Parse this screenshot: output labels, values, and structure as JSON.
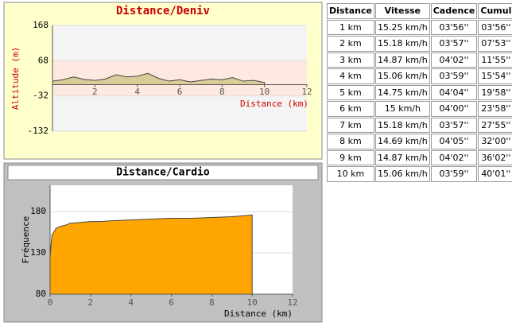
{
  "chart_data": [
    {
      "type": "area",
      "title": "Distance/Deniv",
      "ylabel": "Altitude (m)",
      "xlabel": "Distance (km)",
      "x": [
        0,
        0.5,
        1,
        1.5,
        2,
        2.5,
        3,
        3.5,
        4,
        4.5,
        5,
        5.5,
        6,
        6.5,
        7,
        7.5,
        8,
        8.5,
        9,
        9.5,
        10
      ],
      "values": [
        10,
        14,
        22,
        15,
        12,
        16,
        28,
        22,
        24,
        32,
        18,
        10,
        14,
        8,
        12,
        16,
        14,
        20,
        10,
        12,
        6
      ],
      "color": "#d8cc98",
      "xlim": [
        0,
        12
      ],
      "xticks": [
        2,
        4,
        6,
        8,
        10,
        12
      ],
      "ylim": [
        -132,
        168
      ],
      "yticks": [
        168,
        68,
        -32,
        -132
      ]
    },
    {
      "type": "area",
      "title": "Distance/Cardio",
      "ylabel": "Fréquence",
      "xlabel": "Distance (km)",
      "x": [
        0,
        0.05,
        0.1,
        0.2,
        0.3,
        0.5,
        0.8,
        1,
        1.5,
        2,
        2.5,
        3,
        4,
        5,
        6,
        7,
        8,
        9,
        10
      ],
      "values": [
        125,
        140,
        152,
        156,
        160,
        162,
        164,
        166,
        167,
        168,
        168,
        169,
        170,
        171,
        172,
        172,
        173,
        174,
        176
      ],
      "color": "#ffa500",
      "xlim": [
        0,
        12
      ],
      "xticks": [
        0,
        2,
        4,
        6,
        8,
        10,
        12
      ],
      "ylim": [
        80,
        212
      ],
      "yticks": [
        80,
        130,
        180
      ]
    }
  ],
  "table": {
    "header": [
      "Distance",
      "Vitesse",
      "Cadence",
      "Cumul"
    ],
    "rows": [
      [
        "1 km",
        "15.25 km/h",
        "03'56''",
        "03'56''"
      ],
      [
        "2 km",
        "15.18 km/h",
        "03'57''",
        "07'53''"
      ],
      [
        "3 km",
        "14.87 km/h",
        "04'02''",
        "11'55''"
      ],
      [
        "4 km",
        "15.06 km/h",
        "03'59''",
        "15'54''"
      ],
      [
        "5 km",
        "14.75 km/h",
        "04'04''",
        "19'58''"
      ],
      [
        "6 km",
        "15 km/h",
        "04'00''",
        "23'58''"
      ],
      [
        "7 km",
        "15.18 km/h",
        "03'57''",
        "27'55''"
      ],
      [
        "8 km",
        "14.69 km/h",
        "04'05''",
        "32'00''"
      ],
      [
        "9 km",
        "14.87 km/h",
        "04'02''",
        "36'02''"
      ],
      [
        "10 km",
        "15.06 km/h",
        "03'59''",
        "40'01''"
      ]
    ]
  }
}
